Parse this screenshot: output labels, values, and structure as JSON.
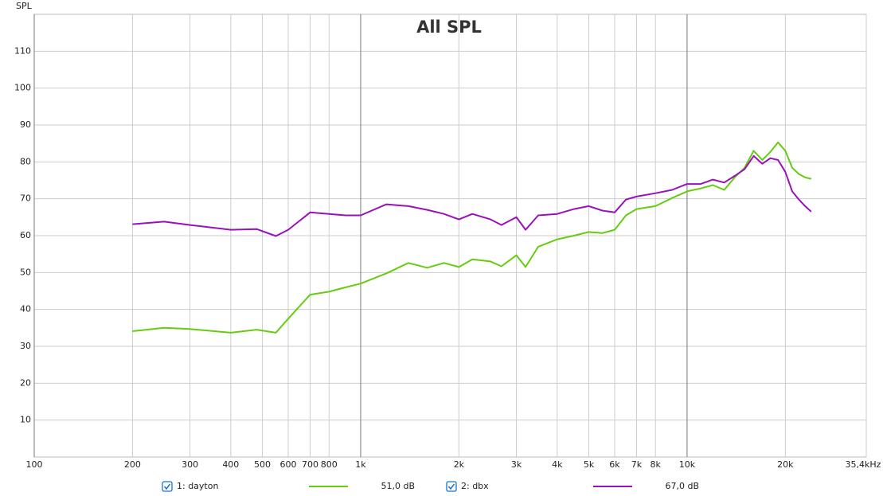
{
  "chart_data": {
    "type": "line",
    "title": "All SPL",
    "y_label": "SPL",
    "log_x": true,
    "grid": true,
    "xlim": [
      100,
      35400
    ],
    "ylim": [
      0,
      120
    ],
    "xticks": [
      100,
      200,
      300,
      400,
      500,
      600,
      700,
      800,
      {
        "value": 1000,
        "label": "1k"
      },
      {
        "value": 2000,
        "label": "2k"
      },
      {
        "value": 3000,
        "label": "3k"
      },
      {
        "value": 4000,
        "label": "4k"
      },
      {
        "value": 5000,
        "label": "5k"
      },
      {
        "value": 6000,
        "label": "6k"
      },
      {
        "value": 7000,
        "label": "7k"
      },
      {
        "value": 8000,
        "label": "8k"
      },
      {
        "value": 10000,
        "label": "10k"
      },
      {
        "value": 20000,
        "label": "20k"
      },
      {
        "value": 35400,
        "label": "35,4kHz"
      }
    ],
    "yticks": [
      10,
      20,
      30,
      40,
      50,
      60,
      70,
      80,
      90,
      100,
      110
    ],
    "x": [
      200,
      250,
      300,
      400,
      480,
      550,
      600,
      700,
      800,
      900,
      1000,
      1200,
      1400,
      1600,
      1800,
      2000,
      2200,
      2500,
      2700,
      3000,
      3200,
      3500,
      4000,
      4500,
      5000,
      5500,
      6000,
      6500,
      7000,
      8000,
      9000,
      10000,
      11000,
      12000,
      13000,
      14000,
      15000,
      16000,
      17000,
      18000,
      19000,
      20000,
      21000,
      22000,
      23000,
      24000
    ],
    "series": [
      {
        "name": "1: dayton",
        "legend_value": "51,0 dB",
        "color": "#66cc11",
        "values": [
          34.1,
          35,
          34.7,
          33.7,
          34.5,
          33.7,
          37.5,
          44,
          44.8,
          46,
          47,
          49.8,
          52.6,
          51.3,
          52.6,
          51.5,
          53.6,
          53,
          51.7,
          54.7,
          51.5,
          57,
          59,
          60,
          61,
          60.7,
          61.6,
          65.5,
          67.2,
          68,
          70.2,
          72,
          72.8,
          73.7,
          72.4,
          75.8,
          78.4,
          83,
          80.5,
          82.7,
          85.3,
          83,
          78.4,
          76.7,
          75.8,
          75.4
        ]
      },
      {
        "name": "2: dbx",
        "legend_value": "67,0 dB",
        "color": "#9911bb",
        "values": [
          63.1,
          63.8,
          62.9,
          61.6,
          61.8,
          59.9,
          61.6,
          66.3,
          65.9,
          65.5,
          65.5,
          68.5,
          68,
          67,
          65.9,
          64.4,
          65.9,
          64.4,
          62.9,
          65,
          61.6,
          65.5,
          65.9,
          67.2,
          68,
          66.8,
          66.3,
          69.8,
          70.6,
          71.5,
          72.4,
          74,
          74,
          75.2,
          74.4,
          76.2,
          78,
          81.6,
          79.5,
          81,
          80.5,
          77.3,
          72,
          69.8,
          68,
          66.5
        ]
      }
    ]
  }
}
